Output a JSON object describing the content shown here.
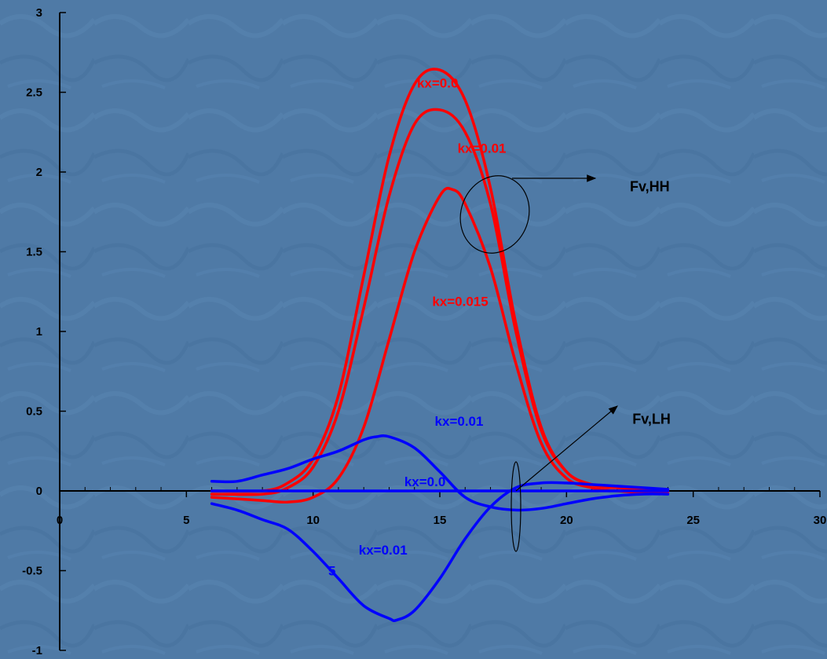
{
  "chart_data": {
    "type": "line",
    "xlim": [
      0,
      30
    ],
    "ylim": [
      -1,
      3
    ],
    "x_ticks": [
      "0",
      "5",
      "10",
      "15",
      "20",
      "25",
      "30"
    ],
    "y_ticks": [
      "3",
      "2.5",
      "2",
      "1.5",
      "1",
      "0.5",
      "0",
      "-0.5",
      "-1"
    ],
    "grid": false,
    "legend": "none",
    "series": [
      {
        "group": "Fv,HH",
        "color": "#ff0000",
        "x": [
          6,
          8,
          9,
          10,
          11,
          12,
          13,
          14,
          15,
          16,
          17,
          18,
          19,
          20,
          21,
          22,
          23,
          24
        ],
        "y": [
          0.0,
          0.0,
          0.05,
          0.2,
          0.6,
          1.35,
          2.1,
          2.55,
          2.64,
          2.45,
          1.9,
          1.05,
          0.4,
          0.12,
          0.04,
          0.02,
          0.01,
          0.0
        ]
      },
      {
        "group": "Fv,HH",
        "color": "#ff0000",
        "x": [
          6,
          8,
          9,
          10,
          11,
          12,
          13,
          14,
          15,
          16,
          17,
          18,
          19,
          20,
          21,
          22,
          23,
          24
        ],
        "y": [
          -0.02,
          -0.02,
          0.02,
          0.15,
          0.5,
          1.15,
          1.85,
          2.3,
          2.39,
          2.25,
          1.8,
          1.0,
          0.38,
          0.12,
          0.04,
          0.02,
          0.01,
          0.0
        ]
      },
      {
        "group": "Fv,HH",
        "color": "#ff0000",
        "x": [
          6,
          7,
          8,
          9,
          10,
          11,
          12,
          13,
          14,
          15,
          15.5,
          16,
          17,
          18,
          19,
          20,
          21,
          22,
          23,
          24
        ],
        "y": [
          -0.04,
          -0.05,
          -0.06,
          -0.07,
          -0.04,
          0.08,
          0.4,
          0.95,
          1.5,
          1.85,
          1.89,
          1.8,
          1.4,
          0.8,
          0.3,
          0.08,
          0.02,
          0.0,
          -0.01,
          -0.01
        ]
      },
      {
        "group": "Fv,LH",
        "color": "#0000ff",
        "x": [
          6,
          7,
          8,
          9,
          10,
          11,
          12,
          13,
          14,
          15,
          16,
          17,
          18,
          19,
          20,
          21,
          22,
          23,
          24
        ],
        "y": [
          0.0,
          0.0,
          0.0,
          0.0,
          0.0,
          0.0,
          0.0,
          0.0,
          0.0,
          0.0,
          0.0,
          0.0,
          0.0,
          0.0,
          0.0,
          0.0,
          0.0,
          0.0,
          0.0
        ]
      },
      {
        "group": "Fv,LH",
        "color": "#0000ff",
        "x": [
          6,
          7,
          8,
          9,
          10,
          11,
          12,
          12.5,
          13,
          14,
          15,
          16,
          17,
          18,
          19,
          20,
          21,
          22,
          23,
          24
        ],
        "y": [
          0.06,
          0.06,
          0.1,
          0.14,
          0.2,
          0.25,
          0.32,
          0.34,
          0.34,
          0.27,
          0.12,
          -0.04,
          -0.1,
          -0.12,
          -0.11,
          -0.08,
          -0.05,
          -0.03,
          -0.02,
          -0.02
        ]
      },
      {
        "group": "Fv,LH",
        "color": "#0000ff",
        "x": [
          6,
          7,
          8,
          9,
          10,
          11,
          12,
          13,
          13.3,
          14,
          15,
          16,
          17,
          18,
          19,
          20,
          21,
          22,
          23,
          24
        ],
        "y": [
          -0.08,
          -0.12,
          -0.18,
          -0.24,
          -0.38,
          -0.55,
          -0.72,
          -0.8,
          -0.81,
          -0.75,
          -0.55,
          -0.3,
          -0.1,
          0.02,
          0.05,
          0.05,
          0.04,
          0.03,
          0.02,
          0.01
        ]
      }
    ],
    "series_labels": [
      {
        "text": "kx=0.0",
        "color": "#ff0000",
        "x": 14.1,
        "y": 2.53
      },
      {
        "text": "kx=0.01",
        "color": "#ff0000",
        "x": 15.7,
        "y": 2.12
      },
      {
        "text": "kx=0.015",
        "color": "#ff0000",
        "x": 14.7,
        "y": 1.16
      },
      {
        "text": "kx=0.01",
        "color": "#0000ff",
        "x": 14.8,
        "y": 0.41
      },
      {
        "text": "kx=0.0",
        "color": "#0000ff",
        "x": 13.6,
        "y": 0.03
      },
      {
        "text": "kx=0.01",
        "color": "#0000ff",
        "x": 11.8,
        "y": -0.4
      },
      {
        "text": "5",
        "color": "#0000ff",
        "x": 10.6,
        "y": -0.53
      }
    ],
    "annotations": [
      {
        "text": "Fv,HH",
        "x": 22.5,
        "y": 1.88
      },
      {
        "text": "Fv,LH",
        "x": 22.6,
        "y": 0.42
      }
    ]
  }
}
